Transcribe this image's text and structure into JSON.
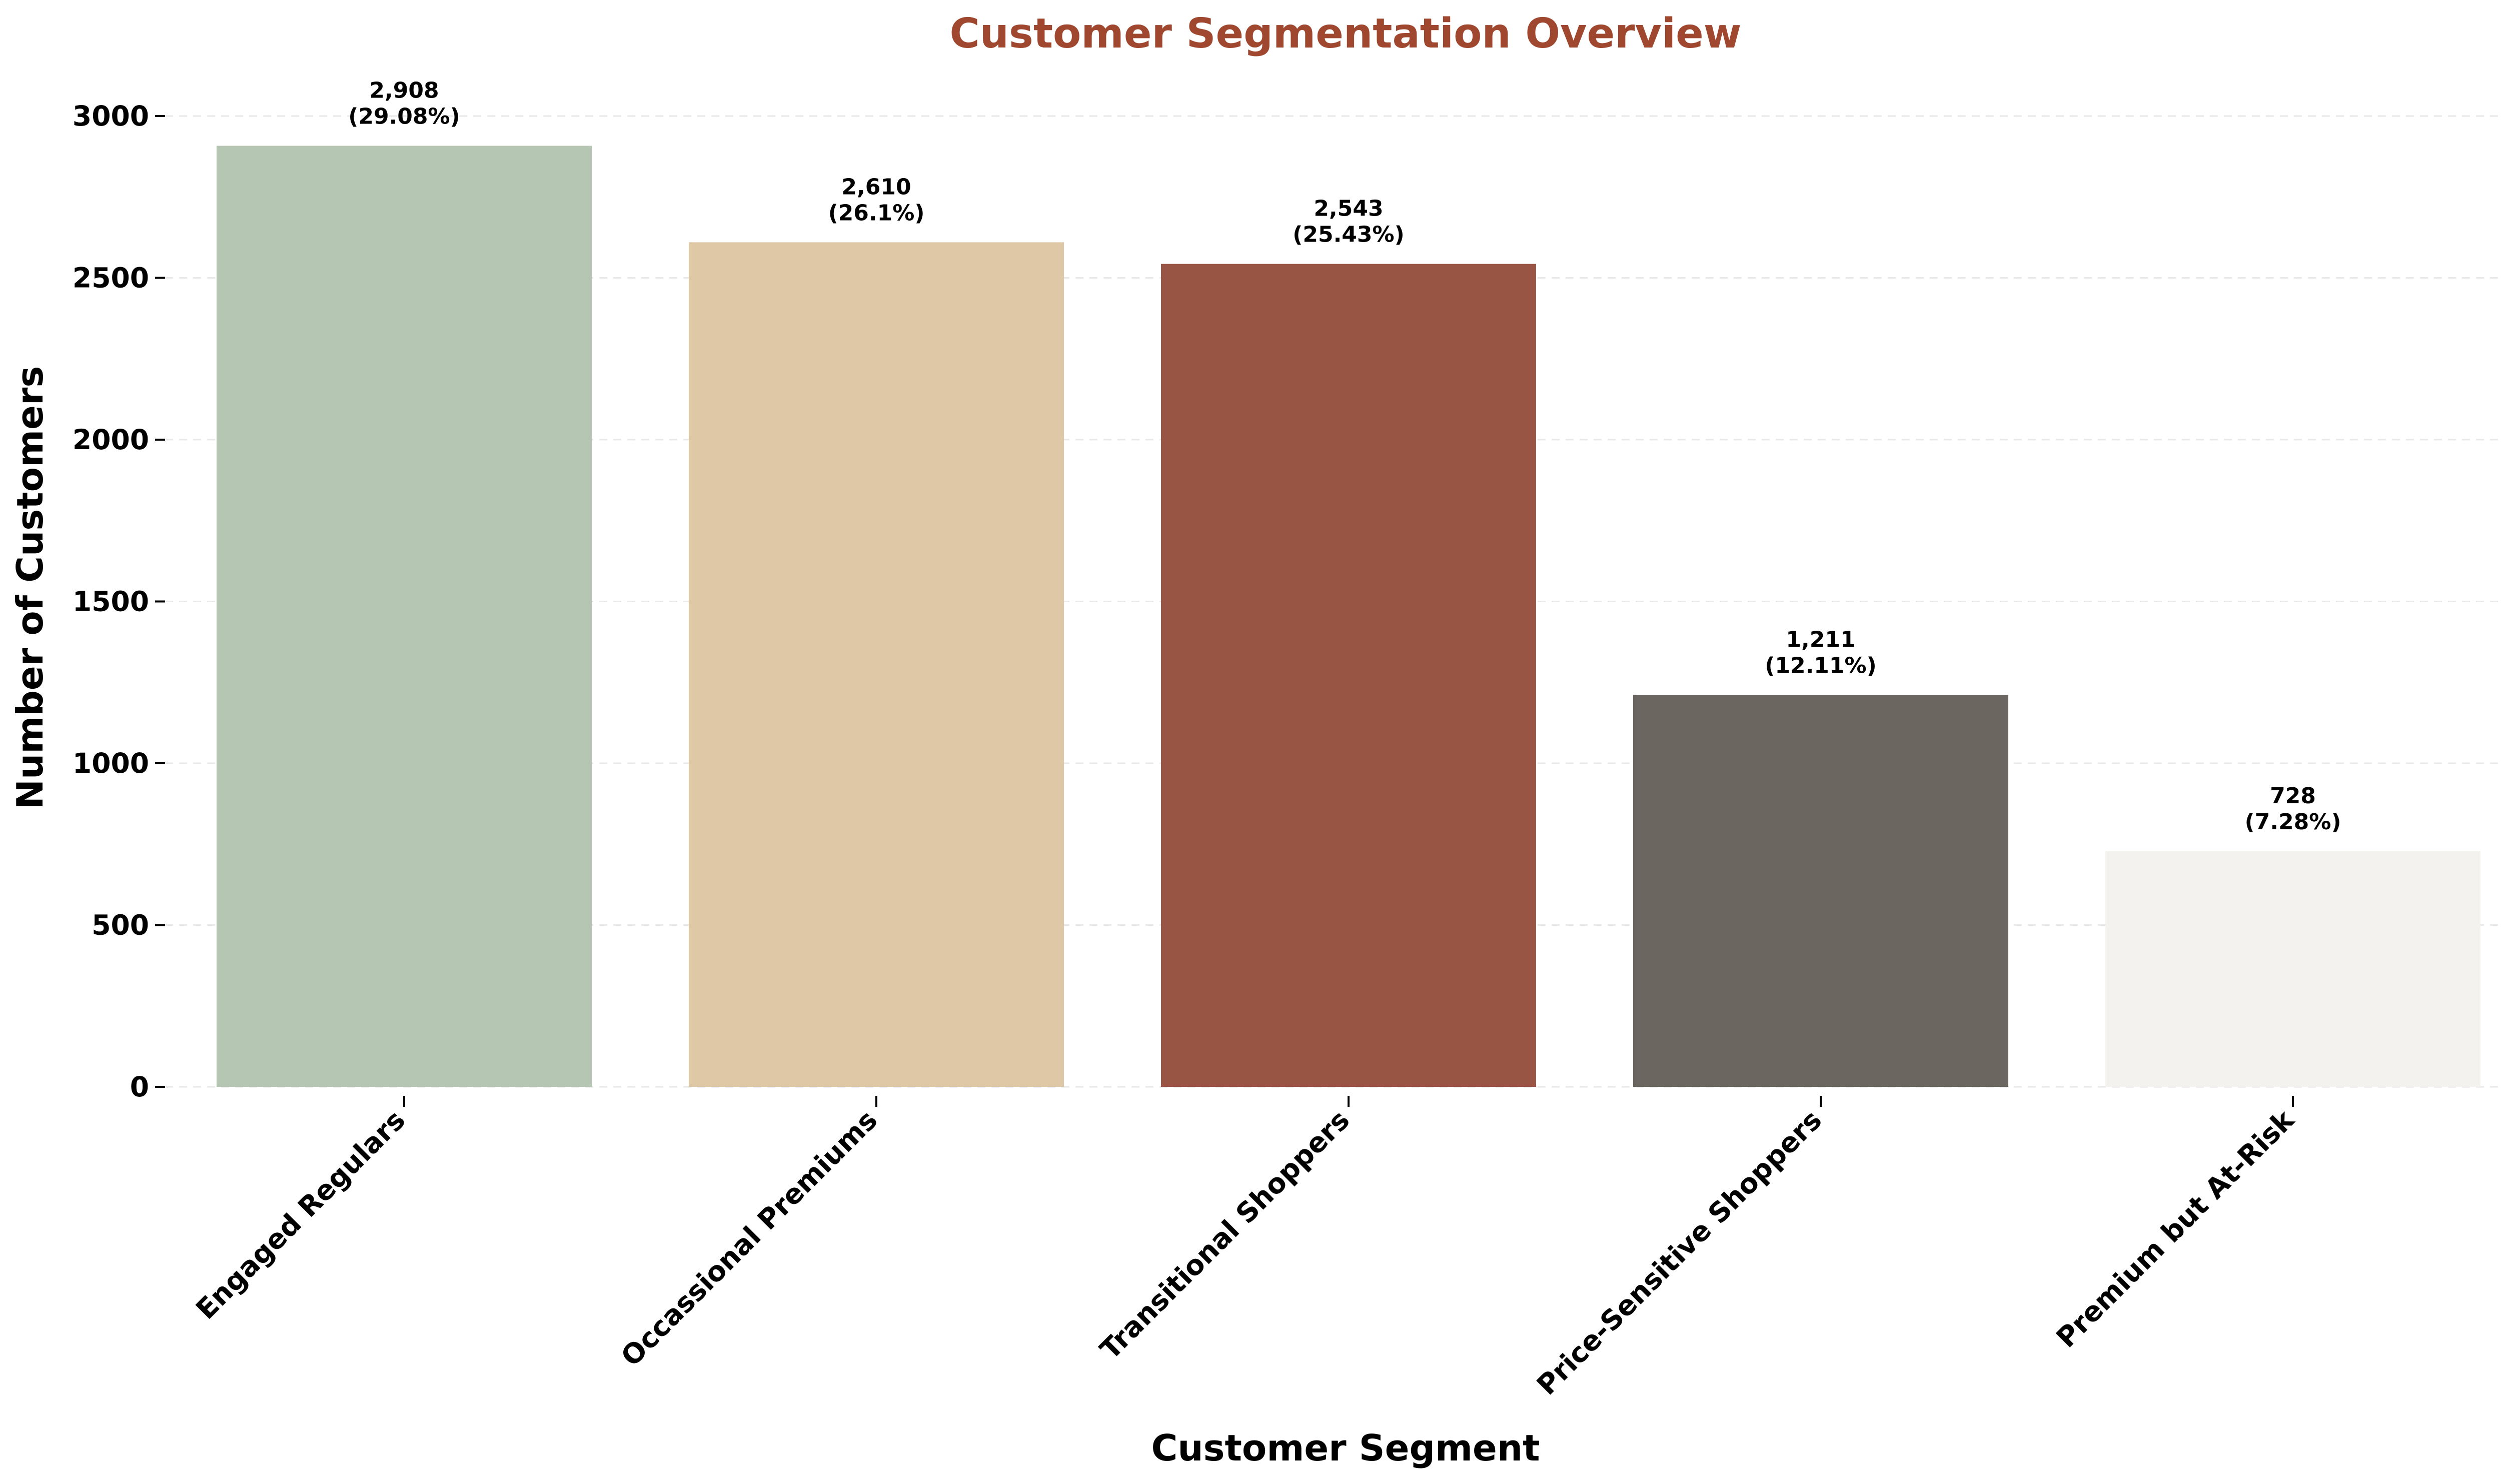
{
  "chart_data": {
    "type": "bar",
    "title": "Customer Segmentation Overview",
    "title_color": "#A0472F",
    "xlabel": "Customer Segment",
    "ylabel": "Number of Customers",
    "ylim": [
      0,
      3000
    ],
    "yticks": [
      0,
      500,
      1000,
      1500,
      2000,
      2500,
      3000
    ],
    "grid": "y-dashed",
    "categories": [
      "Engaged Regulars",
      "Occassional Premiums",
      "Transitional Shoppers",
      "Price-Sensitive Shoppers",
      "Premium but At-Risk"
    ],
    "values": [
      2908,
      2610,
      2543,
      1211,
      728
    ],
    "value_labels": [
      "2,908",
      "2,610",
      "2,543",
      "1,211",
      "728"
    ],
    "percent_labels": [
      "(29.08%)",
      "(26.1%)",
      "(25.43%)",
      "(12.11%)",
      "(7.28%)"
    ],
    "colors": [
      "#B5C6B2",
      "#DEC8A6",
      "#985543",
      "#6B6760",
      "#F3F2EE"
    ]
  }
}
